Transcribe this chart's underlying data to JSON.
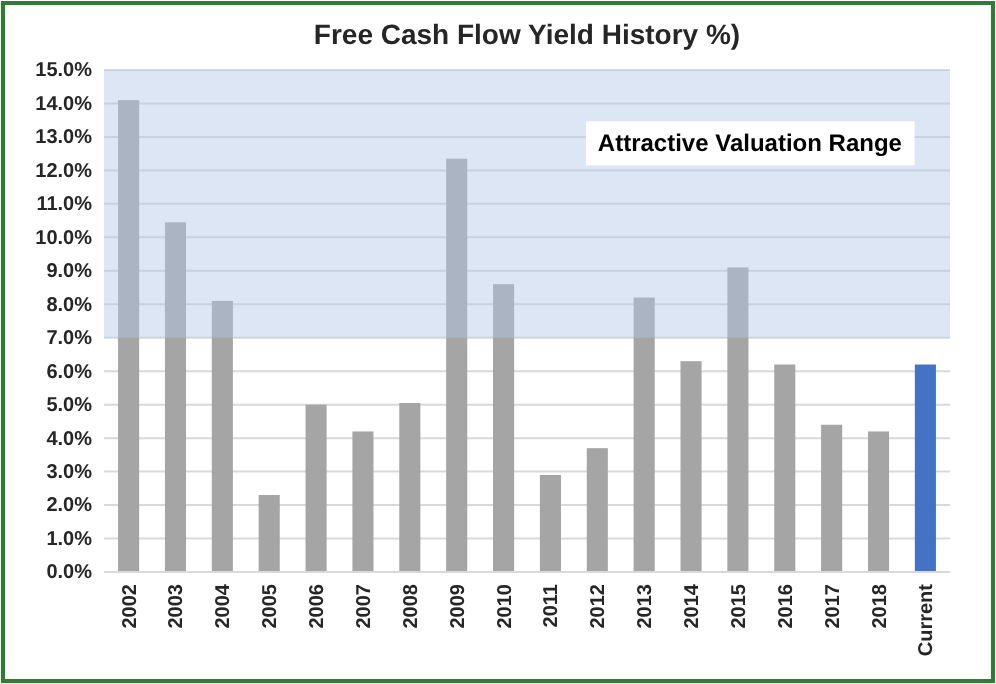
{
  "chart_data": {
    "type": "bar",
    "title": "Free Cash Flow Yield History %)",
    "categories": [
      "2002",
      "2003",
      "2004",
      "2005",
      "2006",
      "2007",
      "2008",
      "2009",
      "2010",
      "2011",
      "2012",
      "2013",
      "2014",
      "2015",
      "2016",
      "2017",
      "2018",
      "Current"
    ],
    "values": [
      14.1,
      10.45,
      8.1,
      2.3,
      5.0,
      4.2,
      5.05,
      12.35,
      8.6,
      2.9,
      3.7,
      8.2,
      6.3,
      9.1,
      6.2,
      4.4,
      4.2,
      6.2
    ],
    "colors": [
      "#a5a5a5",
      "#a5a5a5",
      "#a5a5a5",
      "#a5a5a5",
      "#a5a5a5",
      "#a5a5a5",
      "#a5a5a5",
      "#a5a5a5",
      "#a5a5a5",
      "#a5a5a5",
      "#a5a5a5",
      "#a5a5a5",
      "#a5a5a5",
      "#a5a5a5",
      "#a5a5a5",
      "#a5a5a5",
      "#a5a5a5",
      "#4472c4"
    ],
    "ylim": [
      0,
      15
    ],
    "yticks": [
      {
        "value": 0,
        "label": "0.0%"
      },
      {
        "value": 1,
        "label": "1.0%"
      },
      {
        "value": 2,
        "label": "2.0%"
      },
      {
        "value": 3,
        "label": "3.0%"
      },
      {
        "value": 4,
        "label": "4.0%"
      },
      {
        "value": 5,
        "label": "5.0%"
      },
      {
        "value": 6,
        "label": "6.0%"
      },
      {
        "value": 7,
        "label": "7.0%"
      },
      {
        "value": 8,
        "label": "8.0%"
      },
      {
        "value": 9,
        "label": "9.0%"
      },
      {
        "value": 10,
        "label": "10.0%"
      },
      {
        "value": 11,
        "label": "11.0%"
      },
      {
        "value": 12,
        "label": "12.0%"
      },
      {
        "value": 13,
        "label": "13.0%"
      },
      {
        "value": 14,
        "label": "14.0%"
      },
      {
        "value": 15,
        "label": "15.0%"
      }
    ],
    "grid": "y",
    "bands": [
      {
        "axis": "y",
        "from": 7,
        "to": 15,
        "label": "Attractive Valuation Range",
        "color": "#b4c7e7"
      }
    ]
  }
}
